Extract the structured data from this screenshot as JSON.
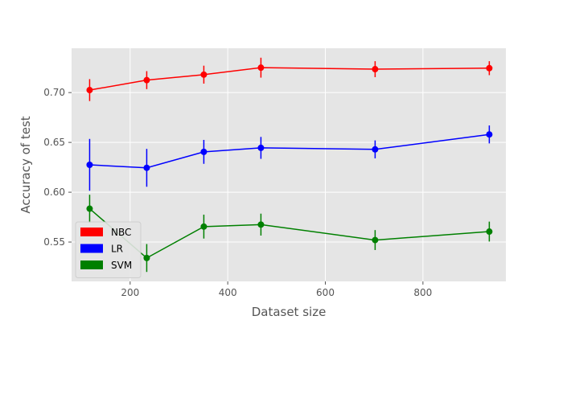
{
  "chart_data": {
    "type": "line",
    "xlabel": "Dataset size",
    "ylabel": "Accuracy of test",
    "xlim": [
      80,
      970
    ],
    "ylim": [
      0.5105,
      0.7445
    ],
    "xticks": [
      200,
      400,
      600,
      800
    ],
    "xtick_labels": [
      "200",
      "400",
      "600",
      "800"
    ],
    "yticks": [
      0.55,
      0.6,
      0.65,
      0.7
    ],
    "ytick_labels": [
      "0.55",
      "0.60",
      "0.65",
      "0.70"
    ],
    "grid": true,
    "legend_position": "lower-left",
    "x": [
      117,
      234,
      351,
      468,
      702,
      936
    ],
    "series": [
      {
        "name": "NBC",
        "color": "#ff0000",
        "values": [
          0.7025,
          0.7125,
          0.718,
          0.725,
          0.7235,
          0.7245
        ],
        "errors": [
          0.011,
          0.009,
          0.009,
          0.01,
          0.008,
          0.007
        ]
      },
      {
        "name": "LR",
        "color": "#0000ff",
        "values": [
          0.6275,
          0.6245,
          0.6405,
          0.6445,
          0.643,
          0.658
        ],
        "errors": [
          0.026,
          0.019,
          0.012,
          0.011,
          0.009,
          0.009
        ]
      },
      {
        "name": "SVM",
        "color": "#008000",
        "values": [
          0.5835,
          0.534,
          0.5655,
          0.5675,
          0.552,
          0.5605
        ],
        "errors": [
          0.014,
          0.014,
          0.012,
          0.011,
          0.01,
          0.01
        ]
      }
    ]
  }
}
